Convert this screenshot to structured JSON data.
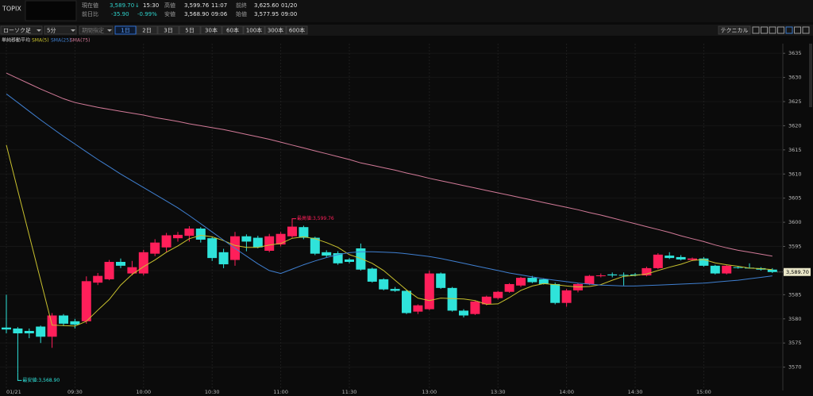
{
  "header": {
    "symbol": "TOPIX",
    "quote": [
      [
        "現在値",
        "3,589.70",
        "↓",
        "15:30",
        "高値",
        "3,599.76",
        "11:07",
        "前終",
        "3,625.60",
        "01/20"
      ],
      [
        "前日比",
        "-35.90",
        "-0.99%",
        "安値",
        "3,568.90",
        "09:06",
        "始値",
        "3,577.95",
        "09:00"
      ]
    ]
  },
  "toolbar": {
    "chart_type": "ローソク足",
    "interval": "5分",
    "range_mode": "期間指定",
    "periods": [
      "1日",
      "2日",
      "3日",
      "5日",
      "30本",
      "60本",
      "100本",
      "300本",
      "600本"
    ],
    "technical": "テクニカル"
  },
  "chart_data": {
    "type": "candlestick",
    "indicator_label": "単純移動平均",
    "categories": [
      "01/21",
      null,
      null,
      null,
      null,
      null,
      "09:30",
      null,
      null,
      null,
      null,
      null,
      "10:00",
      null,
      null,
      null,
      null,
      null,
      "10:30",
      null,
      null,
      null,
      null,
      null,
      "11:00",
      null,
      null,
      null,
      null,
      null,
      "11:30",
      null,
      null,
      null,
      null,
      null,
      null,
      "13:00",
      null,
      null,
      null,
      null,
      null,
      "13:30",
      null,
      null,
      null,
      null,
      null,
      "14:00",
      null,
      null,
      null,
      null,
      null,
      "14:30",
      null,
      null,
      null,
      null,
      null,
      "15:00",
      null,
      null,
      null,
      null,
      null,
      null
    ],
    "open": [
      3578.2,
      3578.0,
      3577.5,
      3578.4,
      3576.3,
      3580.7,
      3579.5,
      3579.5,
      3587.5,
      3588.2,
      3591.8,
      3589.4,
      3589.4,
      3593.5,
      3594.8,
      3596.7,
      3597.2,
      3598.7,
      3596.7,
      3593.8,
      3592.2,
      3597.1,
      3596.8,
      3594.1,
      3595.4,
      3597.1,
      3599.0,
      3596.8,
      3593.8,
      3593.6,
      3592.3,
      3594.6,
      3590.4,
      3588.2,
      3586.2,
      3585.8,
      3581.5,
      3582.0,
      3589.4,
      3586.4,
      3581.7,
      3581.0,
      3583.0,
      3584.3,
      3585.6,
      3586.9,
      3588.5,
      3588.2,
      3587.2,
      3583.3,
      3585.9,
      3587.2,
      3588.9,
      3589.2,
      3589.1,
      3589.2,
      3589.0,
      3590.5,
      3593.1,
      3592.8,
      3592.2,
      3592.5,
      3591.0,
      3589.4,
      3590.7,
      3590.6,
      3590.5,
      3590.2
    ],
    "high": [
      3585.0,
      3578.3,
      3578.0,
      3578.6,
      3581.2,
      3581.0,
      3580.0,
      3588.8,
      3589.5,
      3592.2,
      3592.5,
      3592.0,
      3594.3,
      3596.5,
      3597.8,
      3598.0,
      3599.2,
      3599.0,
      3597.0,
      3594.5,
      3598.0,
      3597.5,
      3597.2,
      3597.6,
      3598.0,
      3599.76,
      3599.3,
      3597.0,
      3594.2,
      3594.0,
      3592.6,
      3595.6,
      3590.6,
      3588.4,
      3586.6,
      3586.0,
      3583.0,
      3590.0,
      3589.6,
      3586.6,
      3582.0,
      3583.8,
      3584.8,
      3585.8,
      3587.4,
      3588.7,
      3588.9,
      3588.4,
      3587.5,
      3586.2,
      3587.4,
      3589.1,
      3589.4,
      3589.6,
      3589.6,
      3589.5,
      3590.8,
      3593.6,
      3593.8,
      3593.2,
      3592.7,
      3592.8,
      3591.2,
      3591.2,
      3590.9,
      3591.5,
      3590.7,
      3590.5
    ],
    "low": [
      3577.0,
      3568.9,
      3576.0,
      3575.0,
      3574.0,
      3578.5,
      3578.0,
      3579.0,
      3587.0,
      3588.0,
      3590.5,
      3589.0,
      3589.0,
      3593.0,
      3593.8,
      3596.0,
      3596.0,
      3595.8,
      3592.0,
      3590.5,
      3591.0,
      3594.0,
      3594.6,
      3593.8,
      3595.0,
      3596.8,
      3596.5,
      3593.2,
      3592.8,
      3591.2,
      3591.5,
      3590.0,
      3587.5,
      3585.9,
      3585.6,
      3581.0,
      3581.0,
      3581.8,
      3586.2,
      3581.5,
      3580.3,
      3580.8,
      3582.8,
      3584.0,
      3585.4,
      3586.6,
      3587.4,
      3587.1,
      3583.0,
      3582.5,
      3585.5,
      3587.0,
      3588.6,
      3588.6,
      3586.9,
      3588.8,
      3588.8,
      3590.3,
      3592.4,
      3592.1,
      3592.0,
      3590.8,
      3589.2,
      3589.2,
      3590.4,
      3590.4,
      3590.0,
      3589.5
    ],
    "close": [
      3577.8,
      3577.0,
      3577.0,
      3576.3,
      3580.7,
      3579.0,
      3578.8,
      3587.8,
      3588.9,
      3591.8,
      3591.0,
      3590.7,
      3593.8,
      3595.8,
      3597.3,
      3597.4,
      3598.7,
      3596.4,
      3592.6,
      3591.3,
      3597.1,
      3596.0,
      3594.8,
      3597.1,
      3597.6,
      3599.1,
      3596.8,
      3593.5,
      3593.1,
      3591.5,
      3591.8,
      3590.2,
      3587.7,
      3586.1,
      3585.8,
      3581.2,
      3582.8,
      3589.4,
      3586.4,
      3581.7,
      3580.7,
      3583.6,
      3584.6,
      3585.6,
      3587.2,
      3588.5,
      3587.6,
      3587.2,
      3583.3,
      3585.9,
      3587.2,
      3588.9,
      3589.0,
      3589.0,
      3589.0,
      3589.0,
      3590.5,
      3593.3,
      3592.6,
      3592.3,
      3592.5,
      3591.0,
      3589.4,
      3591.0,
      3590.6,
      3590.5,
      3590.2,
      3589.7
    ],
    "up_color": "#ff1f5a",
    "down_color": "#2fe3da",
    "series": [
      {
        "name": "SMA(5)",
        "color": "#c9c12e",
        "values": [
          3616.0,
          3606.6,
          3597.3,
          3588.0,
          3578.7,
          3578.6,
          3578.5,
          3579.5,
          3581.8,
          3584.0,
          3587.0,
          3589.2,
          3590.8,
          3592.2,
          3593.8,
          3595.1,
          3596.6,
          3597.3,
          3597.0,
          3596.2,
          3595.2,
          3594.8,
          3594.8,
          3595.3,
          3595.6,
          3596.7,
          3597.0,
          3596.6,
          3595.8,
          3594.8,
          3593.3,
          3592.5,
          3591.5,
          3590.0,
          3588.0,
          3586.0,
          3584.3,
          3583.8,
          3584.3,
          3584.2,
          3584.1,
          3583.8,
          3583.0,
          3583.1,
          3584.4,
          3585.9,
          3586.8,
          3587.3,
          3587.1,
          3586.8,
          3586.6,
          3586.7,
          3587.1,
          3588.0,
          3588.8,
          3589.0,
          3589.3,
          3590.0,
          3590.7,
          3591.3,
          3592.1,
          3592.3,
          3591.6,
          3591.2,
          3590.9,
          3590.5,
          3590.4,
          3590.2
        ]
      },
      {
        "name": "SMA(25)",
        "color": "#3f7fd0",
        "values": [
          3626.6,
          3624.8,
          3623.0,
          3621.2,
          3619.5,
          3617.8,
          3616.2,
          3614.6,
          3613.0,
          3611.5,
          3610.0,
          3608.6,
          3607.2,
          3605.8,
          3604.4,
          3603.0,
          3601.4,
          3599.7,
          3598.0,
          3596.3,
          3594.6,
          3593.0,
          3591.4,
          3590.0,
          3589.4,
          3590.3,
          3591.2,
          3592.0,
          3592.7,
          3593.3,
          3593.7,
          3593.9,
          3593.9,
          3593.8,
          3593.7,
          3593.5,
          3593.2,
          3592.9,
          3592.5,
          3592.0,
          3591.5,
          3591.0,
          3590.5,
          3590.0,
          3589.5,
          3589.1,
          3588.7,
          3588.3,
          3588.0,
          3587.7,
          3587.4,
          3587.2,
          3587.0,
          3586.9,
          3586.8,
          3586.8,
          3586.9,
          3587.0,
          3587.1,
          3587.2,
          3587.3,
          3587.4,
          3587.6,
          3587.8,
          3588.0,
          3588.3,
          3588.6,
          3588.9
        ]
      },
      {
        "name": "SMA(75)",
        "color": "#d27a98",
        "values": [
          3630.9,
          3629.8,
          3628.7,
          3627.6,
          3626.6,
          3625.6,
          3624.8,
          3624.3,
          3623.8,
          3623.4,
          3623.0,
          3622.6,
          3622.2,
          3621.7,
          3621.3,
          3620.9,
          3620.4,
          3620.0,
          3619.6,
          3619.2,
          3618.7,
          3618.2,
          3617.7,
          3617.2,
          3616.6,
          3616.0,
          3615.4,
          3614.8,
          3614.2,
          3613.6,
          3613.0,
          3612.3,
          3611.8,
          3611.3,
          3610.8,
          3610.2,
          3609.7,
          3609.1,
          3608.6,
          3608.1,
          3607.6,
          3607.1,
          3606.6,
          3606.1,
          3605.6,
          3605.1,
          3604.6,
          3604.1,
          3603.6,
          3603.1,
          3602.6,
          3602.0,
          3601.5,
          3600.9,
          3600.3,
          3599.7,
          3599.1,
          3598.5,
          3597.9,
          3597.2,
          3596.6,
          3596.0,
          3595.3,
          3594.7,
          3594.2,
          3593.8,
          3593.4,
          3593.0
        ]
      }
    ],
    "ylim": [
      3565.5,
      3637
    ],
    "yticks": [
      3570,
      3575,
      3580,
      3585,
      3590,
      3595,
      3600,
      3605,
      3610,
      3615,
      3620,
      3625,
      3630,
      3635
    ],
    "grid": true,
    "high_label": "最高値:3,599.76",
    "low_label": "最安値:3,568.90",
    "last_label": "3,589.70"
  }
}
